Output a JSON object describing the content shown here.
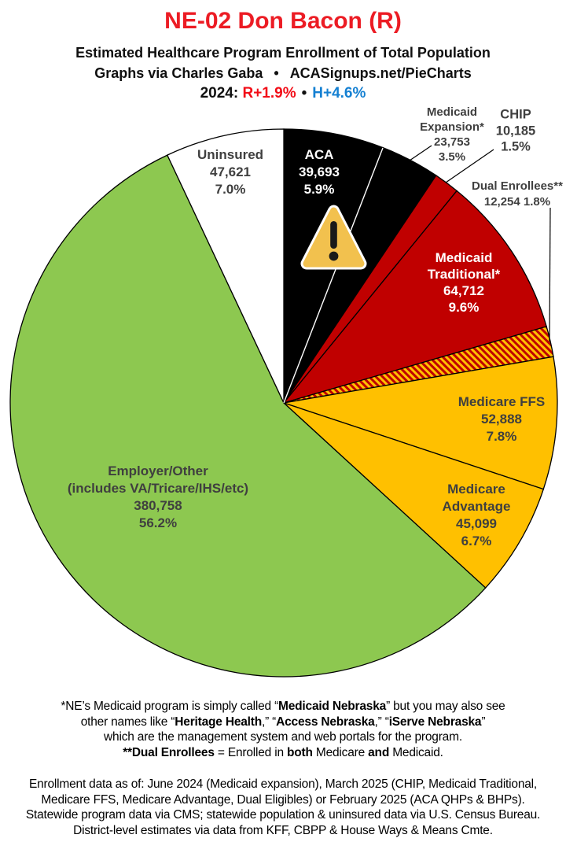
{
  "header": {
    "title": "NE-02 Don Bacon (R)",
    "subtitle": "Estimated Healthcare Program Enrollment of Total Population",
    "credit_left": "Graphs via Charles Gaba",
    "credit_bullet": "•",
    "credit_right": "ACASignups.net/PieCharts",
    "politics_prefix": "2024:",
    "politics_r": "R+1.9%",
    "politics_bullet": "•",
    "politics_h": "H+4.6%",
    "colors": {
      "title": "#ec1c24",
      "r_lean": "#f20d17",
      "h_lean": "#1580d2"
    }
  },
  "icons": {
    "warning": "warning-triangle-icon"
  },
  "chart_data": {
    "type": "pie",
    "title": "Estimated Healthcare Program Enrollment of Total Population",
    "start": "top",
    "direction": "clockwise",
    "outline_color": "#000000",
    "divider_between_black_slices_color": "#ffffff",
    "hatch_colors": {
      "bg": "#ffc000",
      "fg": "#c00000"
    },
    "text_colors": {
      "dark": "#3f3f3f",
      "light": "#ffffff"
    },
    "slices": [
      {
        "id": "aca",
        "name": "ACA",
        "value": 39693,
        "value_str": "39,693",
        "pct": 5.9,
        "pct_str": "5.9%",
        "color": "#000000",
        "hatch": false,
        "lines": [
          "ACA",
          "39,693",
          "5.9%"
        ]
      },
      {
        "id": "medicaid-expansion",
        "name": "Medicaid Expansion*",
        "value": 23753,
        "value_str": "23,753",
        "pct": 3.5,
        "pct_str": "3.5%",
        "color": "#000000",
        "hatch": false,
        "lines": [
          "Medicaid",
          "Expansion*",
          "23,753",
          "3.5%"
        ]
      },
      {
        "id": "chip",
        "name": "CHIP",
        "value": 10185,
        "value_str": "10,185",
        "pct": 1.5,
        "pct_str": "1.5%",
        "color": "#c00000",
        "hatch": false,
        "lines": [
          "CHIP",
          "10,185",
          "1.5%"
        ]
      },
      {
        "id": "medicaid-traditional",
        "name": "Medicaid Traditional*",
        "value": 64712,
        "value_str": "64,712",
        "pct": 9.6,
        "pct_str": "9.6%",
        "color": "#c00000",
        "hatch": false,
        "lines": [
          "Medicaid",
          "Traditional*",
          "64,712",
          "9.6%"
        ]
      },
      {
        "id": "dual-enrollees",
        "name": "Dual Enrollees**",
        "value": 12254,
        "value_str": "12,254",
        "pct": 1.8,
        "pct_str": "1.8%",
        "color": "#c00000",
        "hatch": true,
        "lines": [
          "Dual Enrollees**",
          "12,254 1.8%"
        ]
      },
      {
        "id": "medicare-ffs",
        "name": "Medicare FFS",
        "value": 52888,
        "value_str": "52,888",
        "pct": 7.8,
        "pct_str": "7.8%",
        "color": "#ffc000",
        "hatch": false,
        "lines": [
          "Medicare FFS",
          "52,888",
          "7.8%"
        ]
      },
      {
        "id": "medicare-advantage",
        "name": "Medicare Advantage",
        "value": 45099,
        "value_str": "45,099",
        "pct": 6.7,
        "pct_str": "6.7%",
        "color": "#ffc000",
        "hatch": false,
        "lines": [
          "Medicare",
          "Advantage",
          "45,099",
          "6.7%"
        ]
      },
      {
        "id": "employer-other",
        "name": "Employer/Other (includes VA/Tricare/IHS/etc)",
        "value": 380758,
        "value_str": "380,758",
        "pct": 56.2,
        "pct_str": "56.2%",
        "color": "#8dc850",
        "hatch": false,
        "lines": [
          "Employer/Other",
          "(includes VA/Tricare/IHS/etc)",
          "380,758",
          "56.2%"
        ]
      },
      {
        "id": "uninsured",
        "name": "Uninsured",
        "value": 47621,
        "value_str": "47,621",
        "pct": 7.0,
        "pct_str": "7.0%",
        "color": "#ffffff",
        "hatch": false,
        "lines": [
          "Uninsured",
          "47,621",
          "7.0%"
        ]
      }
    ]
  },
  "footnote1": {
    "lines": [
      [
        [
          "*NE’s Medicaid program is simply called “",
          0
        ],
        [
          "Medicaid Nebraska",
          1
        ],
        [
          "” but you may also see",
          0
        ]
      ],
      [
        [
          "other names like “",
          0
        ],
        [
          "Heritage Health",
          1
        ],
        [
          ",” “",
          0
        ],
        [
          "Access Nebraska",
          1
        ],
        [
          ",” “",
          0
        ],
        [
          "iServe Nebraska",
          1
        ],
        [
          "”",
          0
        ]
      ],
      [
        [
          "which are the management system and web portals for the program.",
          0
        ]
      ],
      [
        [
          "**Dual Enrollees",
          1
        ],
        [
          " = Enrolled in ",
          0
        ],
        [
          "both",
          1
        ],
        [
          " Medicare ",
          0
        ],
        [
          "and",
          1
        ],
        [
          " Medicaid.",
          0
        ]
      ]
    ]
  },
  "footnote2": {
    "lines": [
      [
        [
          "Enrollment data as of: June 2024 (Medicaid expansion), March 2025 (CHIP, Medicaid Traditional,",
          0
        ]
      ],
      [
        [
          "Medicare FFS, Medicare Advantage, Dual Eligibles) or February 2025 (ACA QHPs & BHPs).",
          0
        ]
      ],
      [
        [
          "Statewide program data via CMS; statewide population & uninsured data via U.S. Census Bureau.",
          0
        ]
      ],
      [
        [
          "District-level estimates via data from KFF, CBPP & House Ways & Means Cmte.",
          0
        ]
      ]
    ]
  }
}
